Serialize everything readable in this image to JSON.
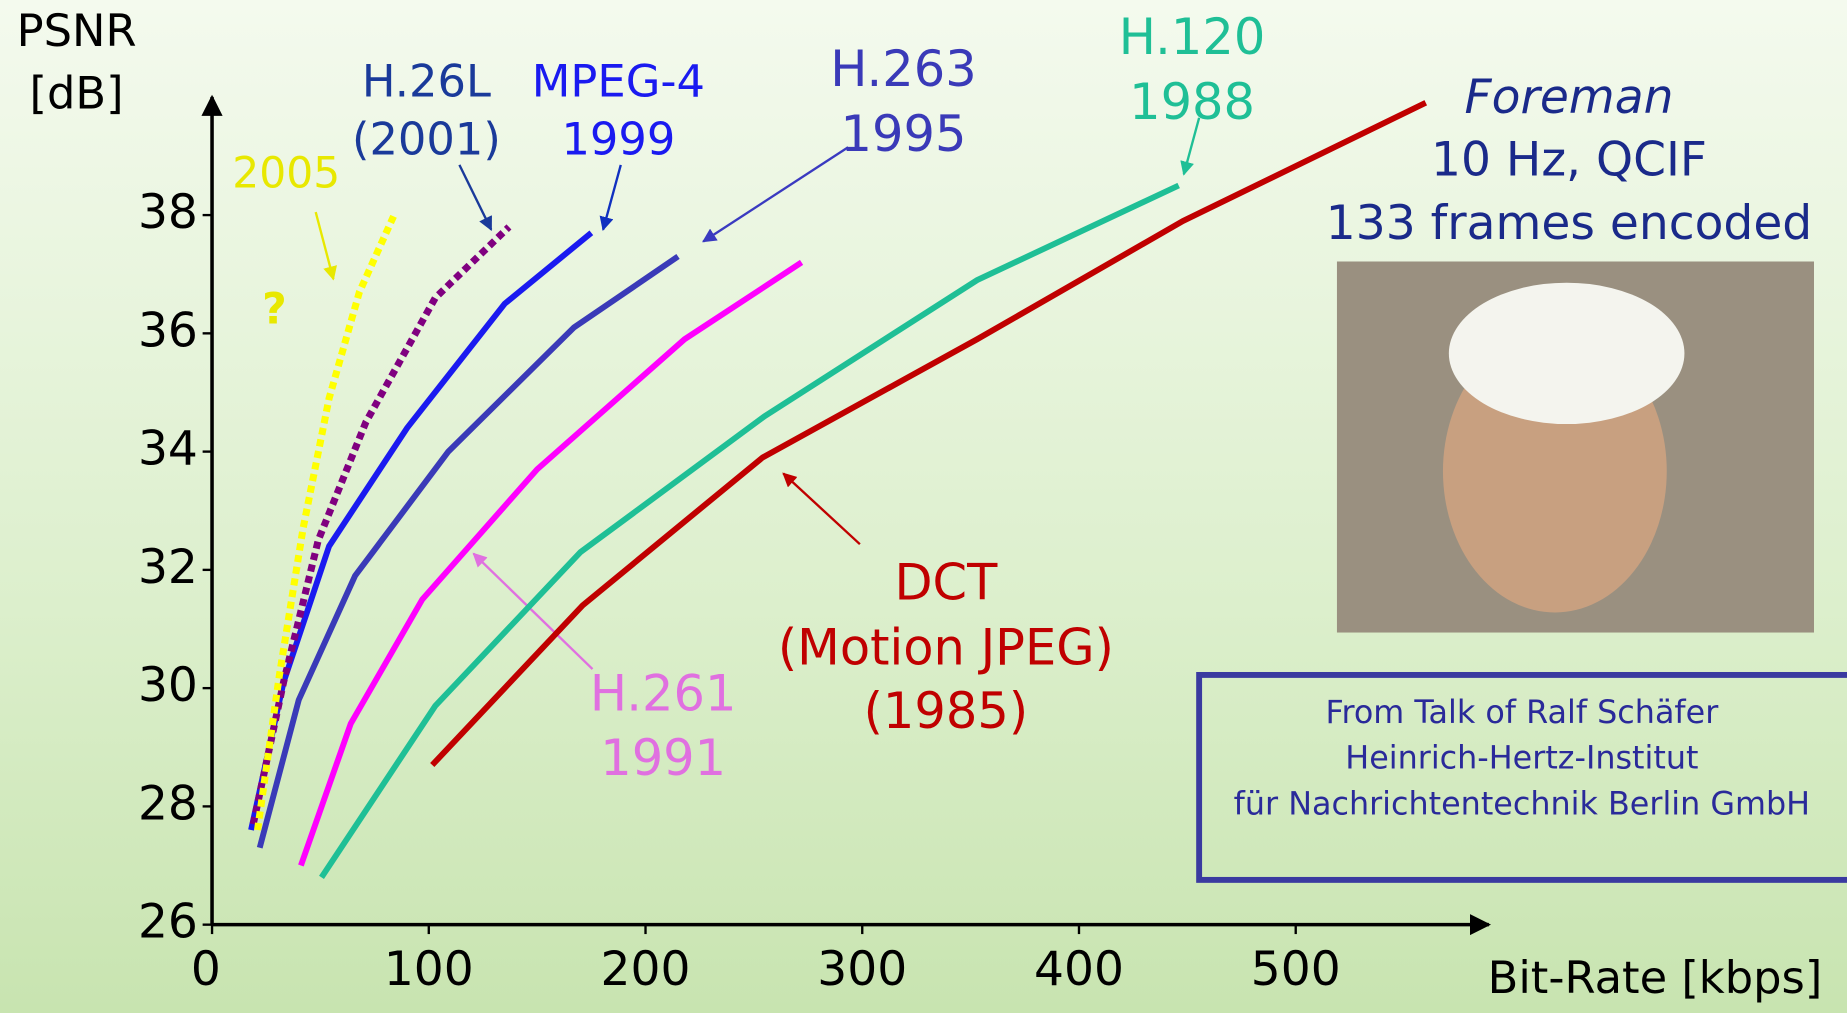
{
  "chart_data": {
    "type": "line",
    "y_label": "PSNR\n[dB]",
    "x_label": "Bit-Rate [kbps]",
    "xlim": [
      0,
      600
    ],
    "ylim": [
      26,
      40
    ],
    "xticks": [
      0,
      100,
      200,
      300,
      400,
      500
    ],
    "yticks": [
      26,
      28,
      30,
      32,
      34,
      36,
      38
    ],
    "series": [
      {
        "name": "DCT\n(Motion JPEG)\n(1985)",
        "color": "#c00000",
        "dashed": false,
        "x": [
          101.6,
          171,
          254,
          353,
          448,
          560
        ],
        "values": [
          28.7,
          31.4,
          33.9,
          35.9,
          37.9,
          39.9
        ]
      },
      {
        "name": "H.120\n1988",
        "color": "#1fbf96",
        "dashed": false,
        "x": [
          50.5,
          103,
          170,
          255,
          353,
          446
        ],
        "values": [
          26.8,
          29.7,
          32.3,
          34.6,
          36.9,
          38.5
        ]
      },
      {
        "name": "H.261\n1991",
        "color": "#ff00ff",
        "dashed": false,
        "x": [
          41,
          64,
          97,
          150,
          218,
          272
        ],
        "values": [
          27.0,
          29.4,
          31.5,
          33.7,
          35.9,
          37.2
        ]
      },
      {
        "name": "H.263\n1995",
        "color": "#3a3ab8",
        "dashed": false,
        "x": [
          22,
          40,
          66,
          109,
          167,
          215
        ],
        "values": [
          27.3,
          29.8,
          31.9,
          34.0,
          36.1,
          37.3
        ]
      },
      {
        "name": "MPEG-4\n1999",
        "color": "#1a1af0",
        "dashed": false,
        "x": [
          18,
          33,
          54,
          90,
          135,
          175
        ],
        "values": [
          27.6,
          30.1,
          32.4,
          34.4,
          36.5,
          37.7
        ]
      },
      {
        "name": "H.26L\n(2001)",
        "color": "#800080",
        "dashed": true,
        "x": [
          19,
          33,
          49,
          71,
          103,
          137
        ],
        "values": [
          27.7,
          30.1,
          32.5,
          34.5,
          36.6,
          37.8
        ]
      },
      {
        "name": "2005",
        "color": "#ffff00",
        "dashed": true,
        "x": [
          21,
          31,
          42,
          54,
          68,
          84
        ],
        "values": [
          27.6,
          30.2,
          32.7,
          34.9,
          36.7,
          38.0
        ]
      }
    ],
    "annotations": {
      "question": "?",
      "sequence": "Foreman",
      "format": "10 Hz, QCIF",
      "frames": "133 frames encoded",
      "credit": [
        "From Talk of Ralf Schäfer",
        "Heinrich-Hertz-Institut",
        "für Nachrichtentechnik Berlin GmbH"
      ]
    }
  }
}
